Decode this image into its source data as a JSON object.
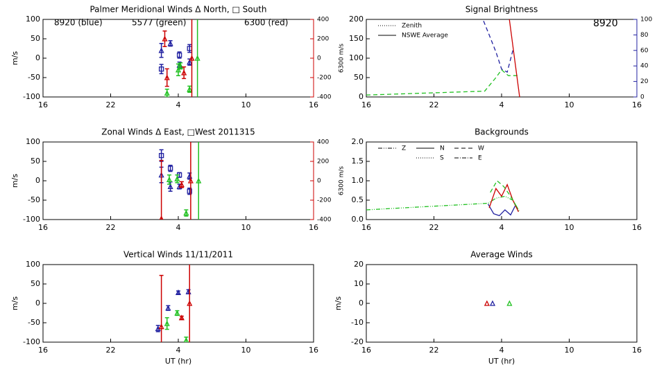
{
  "chart_data": [
    {
      "type": "scatter",
      "title": "Palmer Meridional Winds Δ North, □ South",
      "ylabel": "m/s",
      "y2label": "6300 m/s",
      "y2color": "#cc0000",
      "xlim": [
        16,
        40
      ],
      "xticks": [
        16,
        22,
        {
          "value": 28,
          "label": "4"
        },
        {
          "value": 34,
          "label": "10"
        },
        {
          "value": 40,
          "label": "16"
        }
      ],
      "ylim": [
        -100,
        100
      ],
      "yticks": [
        -100,
        -50,
        0,
        50,
        100
      ],
      "y2lim": [
        -400,
        400
      ],
      "y2ticks": [
        -400,
        -200,
        0,
        200,
        400
      ],
      "annotations": [
        {
          "text": "8920 (blue)",
          "color": "#2020a0"
        },
        {
          "text": "5577 (green)",
          "color": "#20c020"
        },
        {
          "text": "6300 (red)",
          "color": "#cc0000"
        }
      ],
      "series": [
        {
          "color": "#2020a0",
          "marker": "square",
          "x": [
            26.5,
            28.1,
            29.0
          ],
          "values": [
            -28,
            8,
            25
          ],
          "errors": [
            12,
            8,
            10
          ]
        },
        {
          "color": "#2020a0",
          "marker": "triangle",
          "x": [
            26.5,
            27.3,
            28.1,
            29.0
          ],
          "values": [
            20,
            38,
            -18,
            -10
          ],
          "errors": [
            18,
            7,
            8,
            8
          ]
        },
        {
          "color": "#20c020",
          "marker": "triangle",
          "x": [
            27.0,
            28.0,
            28.2,
            29.0,
            29.7
          ],
          "values": [
            -90,
            -30,
            -20,
            -80,
            0
          ],
          "errors": [
            10,
            15,
            8,
            8,
            150
          ]
        },
        {
          "color": "#cc0000",
          "marker": "triangle",
          "axis": "y2",
          "x": [
            26.8,
            27.0,
            28.5,
            29.2
          ],
          "values": [
            200,
            -200,
            -150,
            0
          ],
          "errors": [
            80,
            90,
            60,
            600
          ]
        }
      ]
    },
    {
      "type": "line",
      "title": "Signal Brightness",
      "y2color": "#2020a0",
      "xlim": [
        16,
        40
      ],
      "xticks": [
        16,
        22,
        {
          "value": 28,
          "label": "4"
        },
        {
          "value": 34,
          "label": "10"
        },
        {
          "value": 40,
          "label": "16"
        }
      ],
      "ylim": [
        0,
        200
      ],
      "yticks": [
        0,
        50,
        100,
        150,
        200
      ],
      "y2lim": [
        0,
        100
      ],
      "y2ticks": [
        0,
        20,
        40,
        60,
        80,
        100
      ],
      "annotations": [
        {
          "text": "8920",
          "color": "#2020a0"
        }
      ],
      "legend": [
        {
          "label": "Zenith",
          "style": "1,2"
        },
        {
          "label": "NSWE Average",
          "style": "none"
        }
      ],
      "series": [
        {
          "color": "#20c020",
          "dash": "6,4",
          "x": [
            16,
            26.5,
            27.5,
            28.0,
            28.6,
            29.5
          ],
          "values": [
            5,
            15,
            50,
            70,
            55,
            55
          ]
        },
        {
          "color": "#2020a0",
          "dash": "6,4",
          "axis": "y2",
          "x": [
            26.4,
            26.9,
            27.5,
            28.0,
            28.5,
            29.0
          ],
          "values": [
            98,
            80,
            58,
            36,
            32,
            60
          ]
        },
        {
          "color": "#cc0000",
          "dash": "none",
          "x": [
            28.6,
            29.6
          ],
          "values": [
            220,
            0
          ]
        }
      ]
    },
    {
      "type": "scatter",
      "title": "Zonal Winds Δ East, □West 2011315",
      "ylabel": "m/s",
      "y2label": "6300 m/s",
      "y2color": "#cc0000",
      "xlim": [
        16,
        40
      ],
      "xticks": [
        16,
        22,
        {
          "value": 28,
          "label": "4"
        },
        {
          "value": 34,
          "label": "10"
        },
        {
          "value": 40,
          "label": "16"
        }
      ],
      "ylim": [
        -100,
        100
      ],
      "yticks": [
        -100,
        -50,
        0,
        50,
        100
      ],
      "y2lim": [
        -400,
        400
      ],
      "y2ticks": [
        -400,
        -200,
        0,
        200,
        400
      ],
      "series": [
        {
          "color": "#2020a0",
          "marker": "square",
          "x": [
            26.5,
            27.3,
            28.1,
            29.0
          ],
          "values": [
            65,
            32,
            15,
            -27
          ],
          "errors": [
            15,
            8,
            6,
            8
          ]
        },
        {
          "color": "#2020a0",
          "marker": "triangle",
          "x": [
            26.5,
            27.3,
            28.1,
            29.0
          ],
          "values": [
            15,
            -15,
            -15,
            12
          ],
          "errors": [
            20,
            12,
            6,
            8
          ]
        },
        {
          "color": "#20c020",
          "marker": "triangle",
          "x": [
            27.2,
            27.9,
            28.7,
            29.8
          ],
          "values": [
            3,
            5,
            -83,
            0
          ],
          "errors": [
            12,
            10,
            8,
            150
          ]
        },
        {
          "color": "#cc0000",
          "marker": "triangle",
          "axis": "y2",
          "x": [
            26.5,
            28.3,
            29.1
          ],
          "values": [
            -390,
            -40,
            0
          ],
          "errors": [
            600,
            30,
            600
          ]
        }
      ]
    },
    {
      "type": "line",
      "title": "Backgrounds",
      "xlim": [
        16,
        40
      ],
      "xticks": [
        16,
        22,
        {
          "value": 28,
          "label": "4"
        },
        {
          "value": 34,
          "label": "10"
        },
        {
          "value": 40,
          "label": "16"
        }
      ],
      "ylim": [
        0,
        2
      ],
      "yticks": [
        {
          "value": 0,
          "label": "0.0"
        },
        {
          "value": 0.5,
          "label": "0.5"
        },
        {
          "value": 1,
          "label": "1.0"
        },
        {
          "value": 1.5,
          "label": "1.5"
        },
        {
          "value": 2,
          "label": "2.0"
        }
      ],
      "legend": [
        {
          "label": "Z",
          "style": "6,2,1,2,1,2"
        },
        {
          "label": "N",
          "style": "none"
        },
        {
          "label": "W",
          "style": "6,4"
        },
        {
          "label": "S",
          "style": "1,2"
        },
        {
          "label": "E",
          "style": "6,2,1,2"
        }
      ],
      "series": [
        {
          "color": "#20c020",
          "dash": "6,2,1,2,1,2",
          "x": [
            16,
            26.8,
            27.5,
            28.3,
            29.0,
            29.6
          ],
          "values": [
            0.25,
            0.42,
            0.55,
            0.6,
            0.5,
            0.2
          ]
        },
        {
          "color": "#2020a0",
          "dash": "none",
          "x": [
            26.8,
            27.3,
            27.8,
            28.3,
            28.8,
            29.2
          ],
          "values": [
            0.4,
            0.15,
            0.1,
            0.25,
            0.12,
            0.35
          ]
        },
        {
          "color": "#cc0000",
          "dash": "none",
          "x": [
            26.9,
            27.5,
            28.0,
            28.5,
            29.0,
            29.5
          ],
          "values": [
            0.3,
            0.8,
            0.6,
            0.9,
            0.5,
            0.2
          ]
        },
        {
          "color": "#20c020",
          "dash": "6,4",
          "x": [
            27.0,
            27.6,
            28.2,
            28.8,
            29.4
          ],
          "values": [
            0.7,
            1.0,
            0.85,
            0.6,
            0.3
          ]
        }
      ]
    },
    {
      "type": "scatter",
      "title": "Vertical Winds 11/11/2011",
      "ylabel": "m/s",
      "xlabel": "UT (hr)",
      "xlim": [
        16,
        40
      ],
      "xticks": [
        16,
        22,
        {
          "value": 28,
          "label": "4"
        },
        {
          "value": 34,
          "label": "10"
        },
        {
          "value": 40,
          "label": "16"
        }
      ],
      "ylim": [
        -100,
        100
      ],
      "yticks": [
        -100,
        -50,
        0,
        50,
        100
      ],
      "series": [
        {
          "color": "#2020a0",
          "marker": "triangle",
          "x": [
            26.2,
            27.1,
            28.0,
            28.9
          ],
          "values": [
            -65,
            -12,
            28,
            30
          ],
          "errors": [
            8,
            6,
            4,
            5
          ]
        },
        {
          "color": "#20c020",
          "marker": "triangle",
          "x": [
            27.0,
            27.9,
            28.7
          ],
          "values": [
            -52,
            -25,
            -95
          ],
          "errors": [
            15,
            6,
            8
          ]
        },
        {
          "color": "#cc0000",
          "marker": "triangle",
          "x": [
            26.5,
            28.3,
            29.0
          ],
          "values": [
            -60,
            -37,
            0
          ],
          "errors": [
            132,
            4,
            130
          ]
        }
      ]
    },
    {
      "type": "scatter",
      "title": "Average Winds",
      "ylabel": "m/s",
      "xlabel": "UT (hr)",
      "xlim": [
        16,
        40
      ],
      "xticks": [
        16,
        22,
        {
          "value": 28,
          "label": "4"
        },
        {
          "value": 34,
          "label": "10"
        },
        {
          "value": 40,
          "label": "16"
        }
      ],
      "ylim": [
        -20,
        20
      ],
      "yticks": [
        -20,
        -10,
        0,
        10,
        20
      ],
      "series": [
        {
          "color": "#cc0000",
          "marker": "triangle",
          "x": [
            26.7
          ],
          "values": [
            0
          ]
        },
        {
          "color": "#2020a0",
          "marker": "triangle",
          "x": [
            27.2
          ],
          "values": [
            0
          ]
        },
        {
          "color": "#20c020",
          "marker": "triangle",
          "x": [
            28.7
          ],
          "values": [
            0
          ]
        }
      ]
    }
  ]
}
